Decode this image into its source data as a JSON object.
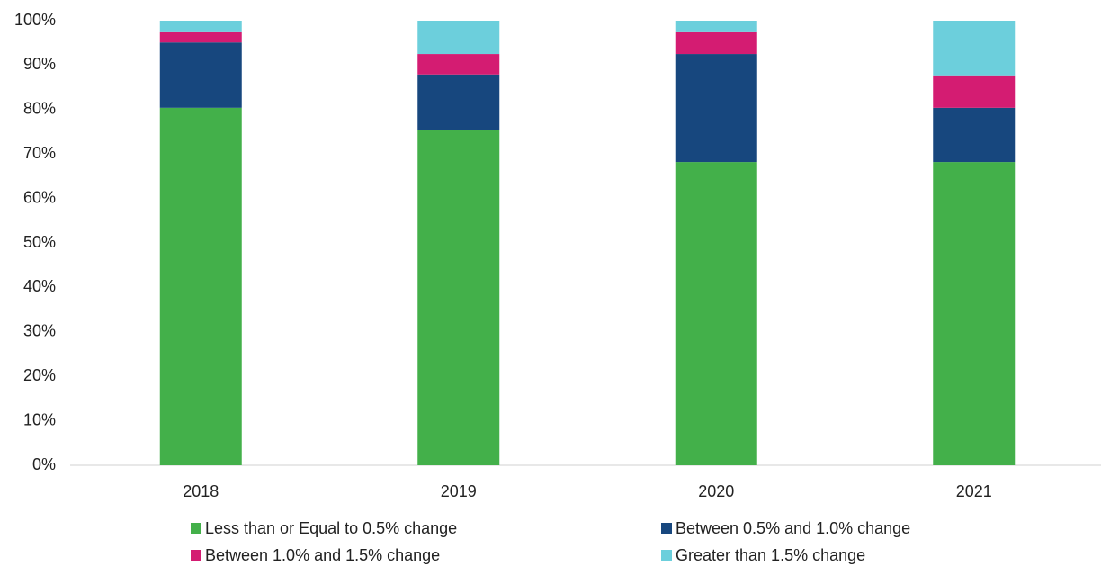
{
  "chart_data": {
    "type": "stacked_bar",
    "categories": [
      "2018",
      "2019",
      "2020",
      "2021"
    ],
    "series": [
      {
        "name": "Less than or Equal to 0.5% change",
        "color": "#43b04a",
        "values": [
          80.4,
          75.5,
          68.2,
          68.2
        ]
      },
      {
        "name": "Between 0.5% and 1.0% change",
        "color": "#17477e",
        "values": [
          14.7,
          12.4,
          24.3,
          12.2
        ]
      },
      {
        "name": "Between 1.0% and 1.5% change",
        "color": "#d41c72",
        "values": [
          2.3,
          4.6,
          4.9,
          7.3
        ]
      },
      {
        "name": "Greater than 1.5% change",
        "color": "#6ccfdc",
        "values": [
          2.6,
          7.5,
          2.6,
          12.3
        ]
      }
    ],
    "ylim": [
      0,
      100
    ],
    "yticks": [
      {
        "value": 0,
        "label": "0%"
      },
      {
        "value": 10,
        "label": "10%"
      },
      {
        "value": 20,
        "label": "20%"
      },
      {
        "value": 30,
        "label": "30%"
      },
      {
        "value": 40,
        "label": "40%"
      },
      {
        "value": 50,
        "label": "50%"
      },
      {
        "value": 60,
        "label": "60%"
      },
      {
        "value": 70,
        "label": "70%"
      },
      {
        "value": 80,
        "label": "80%"
      },
      {
        "value": 90,
        "label": "90%"
      },
      {
        "value": 100,
        "label": "100%"
      }
    ],
    "grid": false,
    "legend": "bottom"
  }
}
